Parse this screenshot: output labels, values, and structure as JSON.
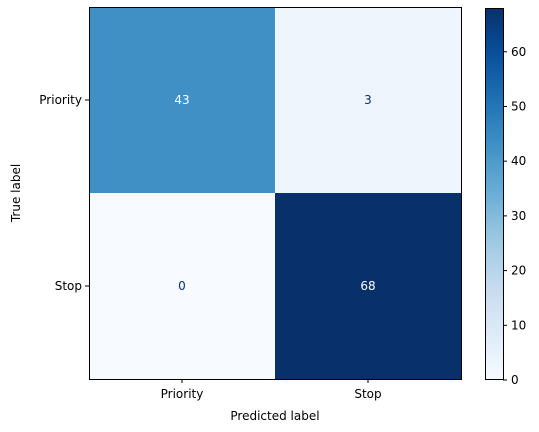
{
  "chart_data": {
    "type": "heatmap",
    "title": "",
    "xlabel": "Predicted label",
    "ylabel": "True label",
    "x_categories": [
      "Priority",
      "Stop"
    ],
    "y_categories": [
      "Priority",
      "Stop"
    ],
    "values": [
      [
        43,
        3
      ],
      [
        0,
        68
      ]
    ],
    "colormap": "Blues",
    "colorbar": {
      "range": [
        0,
        68
      ],
      "ticks": [
        0,
        10,
        20,
        30,
        40,
        50,
        60
      ],
      "tick_labels": [
        "0",
        "10",
        "20",
        "30",
        "40",
        "50",
        "60"
      ]
    },
    "colors": {
      "low": "#f7fbff",
      "high": "#08306b",
      "text_on_dark": "#ffffff",
      "text_on_light": "#08306b"
    }
  }
}
